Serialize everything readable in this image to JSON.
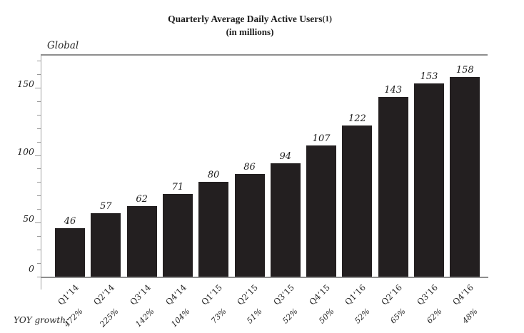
{
  "header": {
    "title_main": "Quarterly Average Daily Active Users",
    "title_footnote": "(1)",
    "subtitle": "(in millions)"
  },
  "chart_data": {
    "type": "bar",
    "title": "Quarterly Average Daily Active Users(1)",
    "subtitle": "(in millions)",
    "region_label": "Global",
    "categories": [
      "Q1’14",
      "Q2’14",
      "Q3’14",
      "Q4’14",
      "Q1’15",
      "Q2’15",
      "Q3’15",
      "Q4’15",
      "Q1’16",
      "Q2’16",
      "Q3’16",
      "Q4’16"
    ],
    "values": [
      46,
      57,
      62,
      71,
      80,
      86,
      94,
      107,
      122,
      143,
      153,
      158
    ],
    "yoy_row": {
      "label": "YOY growth:",
      "values": [
        "472%",
        "225%",
        "142%",
        "104%",
        "73%",
        "51%",
        "52%",
        "50%",
        "52%",
        "65%",
        "62%",
        "48%"
      ]
    },
    "xlabel": "",
    "ylabel": "",
    "y_ticks": [
      0,
      50,
      100,
      150
    ],
    "y_minor_tick_step": 10,
    "ylim": [
      0,
      175
    ],
    "grid": false,
    "legend": "none",
    "colors": {
      "bar": "#231f20",
      "axis": "#8e8e8e",
      "text": "#1c1c1c"
    }
  }
}
